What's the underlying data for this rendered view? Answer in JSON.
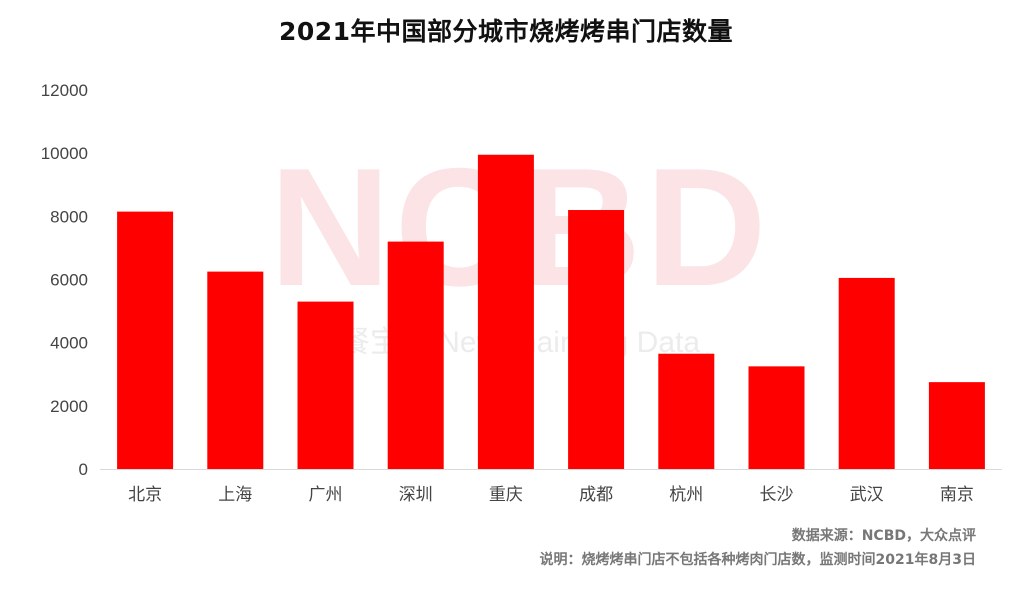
{
  "chart_data": {
    "type": "bar",
    "title": "2021年中国部分城市烧烤烤串门店数量",
    "categories": [
      "北京",
      "上海",
      "广州",
      "深圳",
      "重庆",
      "成都",
      "杭州",
      "长沙",
      "武汉",
      "南京"
    ],
    "values": [
      8150,
      6250,
      5300,
      7200,
      9950,
      8200,
      3650,
      3250,
      6050,
      2750
    ],
    "yticks": [
      0,
      2000,
      4000,
      6000,
      8000,
      10000,
      12000
    ],
    "ylim": [
      0,
      12000
    ],
    "xlabel": "",
    "ylabel": "",
    "grid": false,
    "legend": "none",
    "bar_color": "#ff0000"
  },
  "watermark": {
    "logo": "NCBD",
    "tagline": "餐宝典 NewChain Big Data"
  },
  "notes": {
    "source": "数据来源：NCBD，大众点评",
    "description": "说明：烧烤烤串门店不包括各种烤肉门店数，监测时间2021年8月3日"
  }
}
